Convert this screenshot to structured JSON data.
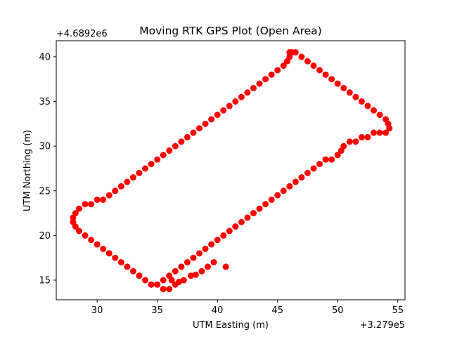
{
  "chart_data": {
    "type": "scatter",
    "title": "Moving RTK GPS Plot (Open Area)",
    "xlabel": "UTM Easting (m)",
    "ylabel": "UTM Northing (m)",
    "x_offset_label": "+3.279e5",
    "y_offset_label": "+4.6892e6",
    "xlim": [
      26.6,
      55.6
    ],
    "ylim": [
      12.8,
      41.8
    ],
    "xticks": [
      30,
      35,
      40,
      45,
      50,
      55
    ],
    "yticks": [
      15,
      20,
      25,
      30,
      35,
      40
    ],
    "grid": false,
    "marker_color": "#ff0000",
    "series": [
      {
        "points": [
          [
            46.0,
            40.5
          ],
          [
            46.5,
            40.5
          ],
          [
            47.0,
            40.0
          ],
          [
            47.5,
            39.5
          ],
          [
            48.0,
            39.0
          ],
          [
            48.5,
            38.5
          ],
          [
            49.0,
            38.0
          ],
          [
            49.5,
            37.5
          ],
          [
            50.0,
            37.0
          ],
          [
            50.5,
            36.5
          ],
          [
            51.0,
            36.0
          ],
          [
            51.5,
            35.5
          ],
          [
            52.0,
            35.0
          ],
          [
            52.5,
            34.5
          ],
          [
            53.0,
            34.0
          ],
          [
            53.5,
            33.5
          ],
          [
            54.0,
            33.0
          ],
          [
            54.2,
            32.5
          ],
          [
            54.3,
            32.0
          ],
          [
            54.0,
            31.5
          ],
          [
            53.5,
            31.5
          ],
          [
            53.0,
            31.5
          ],
          [
            52.5,
            31.0
          ],
          [
            52.0,
            31.0
          ],
          [
            51.5,
            30.5
          ],
          [
            51.0,
            30.5
          ],
          [
            50.5,
            30.0
          ],
          [
            50.3,
            29.5
          ],
          [
            50.0,
            29.0
          ],
          [
            49.5,
            28.5
          ],
          [
            49.0,
            28.5
          ],
          [
            48.5,
            28.0
          ],
          [
            48.0,
            27.5
          ],
          [
            47.5,
            27.0
          ],
          [
            47.0,
            26.5
          ],
          [
            46.5,
            26.0
          ],
          [
            46.0,
            25.5
          ],
          [
            45.5,
            25.0
          ],
          [
            45.0,
            24.5
          ],
          [
            44.5,
            24.0
          ],
          [
            44.0,
            23.5
          ],
          [
            43.5,
            23.0
          ],
          [
            43.0,
            22.5
          ],
          [
            42.5,
            22.0
          ],
          [
            42.0,
            21.5
          ],
          [
            41.5,
            21.0
          ],
          [
            41.0,
            20.5
          ],
          [
            40.5,
            20.0
          ],
          [
            40.0,
            19.5
          ],
          [
            39.5,
            19.0
          ],
          [
            39.0,
            18.5
          ],
          [
            38.5,
            18.0
          ],
          [
            38.0,
            17.5
          ],
          [
            37.5,
            17.0
          ],
          [
            37.0,
            16.5
          ],
          [
            36.5,
            16.0
          ],
          [
            36.0,
            15.5
          ],
          [
            35.5,
            15.0
          ],
          [
            35.0,
            14.5
          ],
          [
            34.5,
            14.5
          ],
          [
            34.0,
            15.0
          ],
          [
            33.5,
            15.5
          ],
          [
            33.0,
            16.0
          ],
          [
            32.5,
            16.5
          ],
          [
            32.0,
            17.0
          ],
          [
            31.5,
            17.5
          ],
          [
            31.0,
            18.0
          ],
          [
            30.5,
            18.5
          ],
          [
            30.0,
            19.0
          ],
          [
            29.5,
            19.5
          ],
          [
            29.0,
            20.0
          ],
          [
            28.5,
            20.5
          ],
          [
            28.2,
            21.0
          ],
          [
            28.0,
            21.5
          ],
          [
            28.0,
            22.0
          ],
          [
            28.2,
            22.5
          ],
          [
            28.5,
            23.0
          ],
          [
            29.0,
            23.5
          ],
          [
            29.5,
            23.5
          ],
          [
            30.0,
            24.0
          ],
          [
            30.5,
            24.0
          ],
          [
            31.0,
            24.5
          ],
          [
            31.5,
            25.0
          ],
          [
            32.0,
            25.5
          ],
          [
            32.5,
            26.0
          ],
          [
            33.0,
            26.5
          ],
          [
            33.5,
            27.0
          ],
          [
            34.0,
            27.5
          ],
          [
            34.5,
            28.0
          ],
          [
            35.0,
            28.5
          ],
          [
            35.5,
            29.0
          ],
          [
            36.0,
            29.5
          ],
          [
            36.5,
            30.0
          ],
          [
            37.0,
            30.5
          ],
          [
            37.5,
            31.0
          ],
          [
            38.0,
            31.5
          ],
          [
            38.5,
            32.0
          ],
          [
            39.0,
            32.5
          ],
          [
            39.5,
            33.0
          ],
          [
            40.0,
            33.5
          ],
          [
            40.5,
            34.0
          ],
          [
            41.0,
            34.5
          ],
          [
            41.5,
            35.0
          ],
          [
            42.0,
            35.5
          ],
          [
            42.5,
            36.0
          ],
          [
            43.0,
            36.5
          ],
          [
            43.5,
            37.0
          ],
          [
            44.0,
            37.5
          ],
          [
            44.5,
            38.0
          ],
          [
            45.0,
            38.5
          ],
          [
            45.5,
            39.0
          ],
          [
            45.8,
            39.5
          ],
          [
            46.0,
            40.0
          ],
          [
            46.2,
            40.5
          ],
          [
            40.7,
            16.5
          ],
          [
            39.7,
            17.0
          ],
          [
            39.2,
            16.5
          ],
          [
            38.7,
            16.0
          ],
          [
            37.8,
            15.5
          ],
          [
            37.2,
            15.0
          ],
          [
            36.5,
            14.5
          ],
          [
            36.0,
            14.0
          ],
          [
            35.5,
            14.0
          ],
          [
            36.2,
            15.0
          ],
          [
            36.8,
            14.8
          ],
          [
            38.2,
            15.6
          ]
        ]
      }
    ]
  }
}
